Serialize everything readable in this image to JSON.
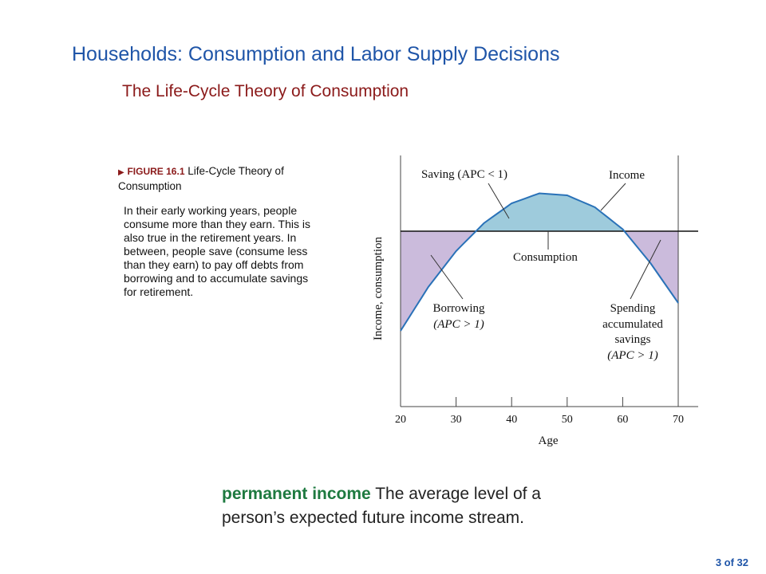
{
  "slide": {
    "title": "Households: Consumption and Labor Supply Decisions",
    "subtitle": "The Life-Cycle Theory of Consumption",
    "figure_number": "FIGURE 16.1",
    "figure_title": "Life-Cycle Theory of Consumption",
    "caption": "In their early working years, people consume more than they earn. This is also true in the retirement years. In between, people save (consume less than they earn) to pay off debts from borrowing and to accumulate savings for retirement.",
    "definition_term": "permanent income",
    "definition_text": "The average level of a person’s expected future income stream.",
    "page_number": "3 of 32"
  },
  "chart_data": {
    "type": "line",
    "xlabel": "Age",
    "ylabel": "Income, consumption",
    "xlim": [
      20,
      70
    ],
    "x_ticks": [
      20,
      30,
      40,
      50,
      60,
      70
    ],
    "income_curve": {
      "x": [
        20,
        25,
        30,
        35,
        40,
        45,
        50,
        55,
        60,
        65,
        70
      ],
      "y": [
        0.38,
        0.6,
        0.78,
        0.92,
        1.02,
        1.07,
        1.06,
        1.0,
        0.89,
        0.72,
        0.52
      ]
    },
    "consumption_level": 0.88,
    "annotations": {
      "saving": "Saving (APC < 1)",
      "income": "Income",
      "consumption": "Consumption",
      "borrowing_line1": "Borrowing",
      "borrowing_line2": "(APC > 1)",
      "spending_line1": "Spending",
      "spending_line2": "accumulated",
      "spending_line3": "savings",
      "spending_line4": "(APC > 1)"
    },
    "colors": {
      "saving_fill": "#9ecbdc",
      "dissaving_fill": "#cbbbdc",
      "income_line": "#2a72b8",
      "axis": "#444444"
    }
  }
}
